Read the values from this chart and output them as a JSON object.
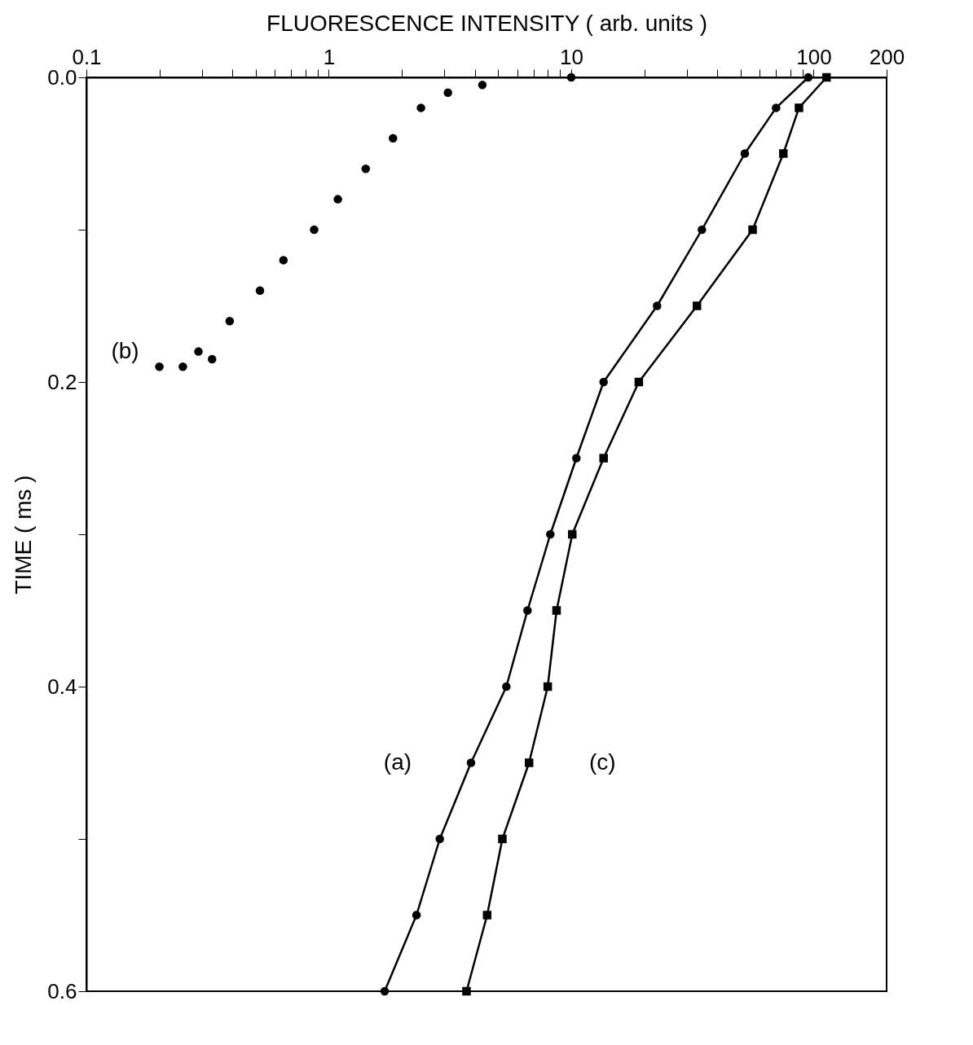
{
  "chart_data": {
    "type": "scatter",
    "xlabel": "FLUORESCENCE INTENSITY ( arb. units )",
    "ylabel": "TIME ( ms )",
    "log": "x",
    "xlim": [
      0.1,
      200
    ],
    "ylim": [
      0.6,
      0
    ],
    "xticks": [
      0.1,
      {
        "value": 0.2,
        "label": null
      },
      {
        "value": 0.3,
        "label": null
      },
      {
        "value": 0.4,
        "label": null
      },
      {
        "value": 0.5,
        "label": null
      },
      {
        "value": 0.6,
        "label": null
      },
      {
        "value": 0.7,
        "label": null
      },
      {
        "value": 0.8,
        "label": null
      },
      {
        "value": 0.9,
        "label": null
      },
      1,
      {
        "value": 2,
        "label": null
      },
      {
        "value": 3,
        "label": null
      },
      {
        "value": 4,
        "label": null
      },
      {
        "value": 5,
        "label": null
      },
      {
        "value": 6,
        "label": null
      },
      {
        "value": 7,
        "label": null
      },
      {
        "value": 8,
        "label": null
      },
      {
        "value": 9,
        "label": null
      },
      10,
      {
        "value": 20,
        "label": null
      },
      {
        "value": 30,
        "label": null
      },
      {
        "value": 40,
        "label": null
      },
      {
        "value": 50,
        "label": null
      },
      {
        "value": 60,
        "label": null
      },
      {
        "value": 70,
        "label": null
      },
      {
        "value": 80,
        "label": null
      },
      {
        "value": 90,
        "label": null
      },
      100,
      200
    ],
    "yticks": [
      {
        "value": 0,
        "label": "0.0"
      },
      {
        "value": 0.1,
        "label": null
      },
      0.2,
      {
        "value": 0.3,
        "label": null
      },
      0.4,
      {
        "value": 0.5,
        "label": null
      },
      0.6
    ],
    "grid": false,
    "series": [
      {
        "name": "(a)",
        "marker": "circle",
        "color": "#000000",
        "x": [
          95,
          70,
          52,
          34.6,
          22.6,
          13.6,
          10.5,
          8.2,
          6.6,
          5.4,
          3.86,
          2.87,
          2.3,
          1.7
        ],
        "values": [
          0,
          0.02,
          0.05,
          0.1,
          0.15,
          0.2,
          0.25,
          0.3,
          0.35,
          0.4,
          0.45,
          0.5,
          0.55,
          0.6
        ]
      },
      {
        "type": "line",
        "color": "#000000",
        "x": [
          95,
          70,
          52,
          34.6,
          22.6,
          13.6,
          10.5,
          8.2,
          6.6,
          5.4,
          3.86,
          2.87,
          2.3,
          1.7
        ],
        "values": [
          0,
          0.02,
          0.05,
          0.1,
          0.15,
          0.2,
          0.25,
          0.3,
          0.35,
          0.4,
          0.45,
          0.5,
          0.55,
          0.6
        ]
      },
      {
        "name": "(c)",
        "marker": "square",
        "color": "#000000",
        "x": [
          113,
          87,
          75,
          56,
          33,
          19,
          13.6,
          10.1,
          8.7,
          8.0,
          6.7,
          5.2,
          4.5,
          3.7
        ],
        "values": [
          0,
          0.02,
          0.05,
          0.1,
          0.15,
          0.2,
          0.25,
          0.3,
          0.35,
          0.4,
          0.45,
          0.5,
          0.55,
          0.6
        ]
      },
      {
        "type": "line",
        "color": "#000000",
        "x": [
          113,
          87,
          75,
          56,
          33,
          19,
          13.6,
          10.1,
          8.7,
          8.0,
          6.7,
          5.2,
          4.5,
          3.7
        ],
        "values": [
          0,
          0.02,
          0.05,
          0.1,
          0.15,
          0.2,
          0.25,
          0.3,
          0.35,
          0.4,
          0.45,
          0.5,
          0.55,
          0.6
        ]
      },
      {
        "name": "(b)",
        "marker": "circle",
        "color": "#000000",
        "x": [
          10,
          4.3,
          3.1,
          2.4,
          1.84,
          1.42,
          1.09,
          0.87,
          0.65,
          0.52,
          0.39,
          0.29,
          0.2,
          0.25,
          0.33
        ],
        "values": [
          0,
          0.005,
          0.01,
          0.02,
          0.04,
          0.06,
          0.08,
          0.1,
          0.12,
          0.14,
          0.16,
          0.18,
          0.19,
          0.19,
          0.185
        ]
      }
    ]
  }
}
